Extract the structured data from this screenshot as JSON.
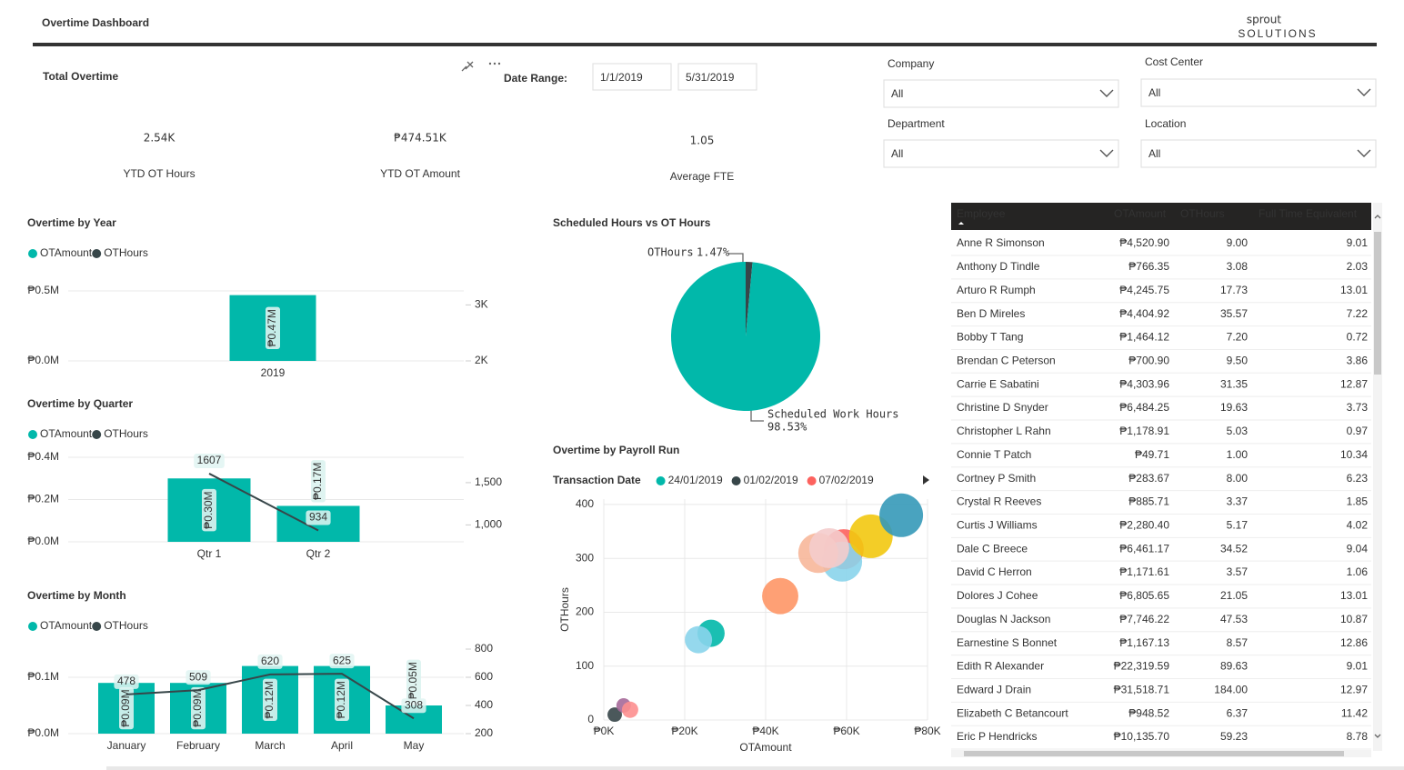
{
  "header": {
    "title": "Overtime Dashboard",
    "logo": {
      "name": "sprout",
      "tagline": "SOLUTIONS"
    }
  },
  "overtime_card": {
    "title": "Total Overtime",
    "date_range": {
      "label": "Date Range:",
      "start": "1/1/2019",
      "end": "5/31/2019"
    },
    "kpis": [
      {
        "value": "2.54K",
        "label": "YTD OT Hours"
      },
      {
        "value": "₱474.51K",
        "label": "YTD OT Amount"
      },
      {
        "value": "1.05",
        "label": "Average FTE"
      }
    ]
  },
  "filters": [
    {
      "label": "Company",
      "value": "All"
    },
    {
      "label": "Cost Center",
      "value": "All"
    },
    {
      "label": "Department",
      "value": "All"
    },
    {
      "label": "Location",
      "value": "All"
    }
  ],
  "chart_data": [
    {
      "type": "combo",
      "title": "Overtime by Year",
      "categories": [
        "2019"
      ],
      "ylim": [
        0,
        500000
      ],
      "yticks": [
        {
          "value": 0,
          "label": "₱0.0M"
        },
        {
          "value": 500000,
          "label": "₱0.5M"
        }
      ],
      "y2lim": [
        2000,
        3250
      ],
      "y2ticks": [
        {
          "value": 2000,
          "label": "2K"
        },
        {
          "value": 3000,
          "label": "3K"
        }
      ],
      "grid": true,
      "series": [
        {
          "name": "OTAmount",
          "type": "bar",
          "color": "#01b8aa",
          "values": [
            470000
          ],
          "value_labels": [
            "₱0.47M"
          ]
        },
        {
          "name": "OTHours",
          "type": "line",
          "axis": "y2",
          "color": "#374649",
          "values": [
            2540
          ],
          "data_labels": false
        }
      ]
    },
    {
      "type": "combo",
      "title": "Overtime by Quarter",
      "categories": [
        "Qtr 1",
        "Qtr 2"
      ],
      "ylim": [
        0,
        400000
      ],
      "yticks": [
        {
          "value": 0,
          "label": "₱0.0M"
        },
        {
          "value": 200000,
          "label": "₱0.2M"
        },
        {
          "value": 400000,
          "label": "₱0.4M"
        }
      ],
      "y2lim": [
        800,
        1800
      ],
      "y2ticks": [
        {
          "value": 1000,
          "label": "1,000"
        },
        {
          "value": 1500,
          "label": "1,500"
        }
      ],
      "grid": true,
      "series": [
        {
          "name": "OTAmount",
          "type": "bar",
          "color": "#01b8aa",
          "values": [
            300000,
            170000
          ],
          "value_labels": [
            "₱0.30M",
            "₱0.17M"
          ]
        },
        {
          "name": "OTHours",
          "type": "line",
          "axis": "y2",
          "color": "#374649",
          "values": [
            1607,
            934
          ],
          "data_labels": true
        }
      ]
    },
    {
      "type": "combo",
      "title": "Overtime by Month",
      "categories": [
        "January",
        "February",
        "March",
        "April",
        "May"
      ],
      "ylim": [
        0,
        150000
      ],
      "yticks": [
        {
          "value": 0,
          "label": "₱0.0M"
        },
        {
          "value": 100000,
          "label": "₱0.1M"
        }
      ],
      "y2lim": [
        200,
        800
      ],
      "y2ticks": [
        200,
        400,
        600,
        800
      ],
      "grid": true,
      "series": [
        {
          "name": "OTAmount",
          "type": "bar",
          "color": "#01b8aa",
          "values": [
            90000,
            90000,
            120000,
            120000,
            50000
          ],
          "value_labels": [
            "₱0.09M",
            "₱0.09M",
            "₱0.12M",
            "₱0.12M",
            "₱0.05M"
          ]
        },
        {
          "name": "OTHours",
          "type": "line",
          "axis": "y2",
          "color": "#374649",
          "values": [
            478,
            509,
            620,
            625,
            308
          ],
          "data_labels": true
        }
      ]
    },
    {
      "type": "pie",
      "title": "Scheduled Hours vs OT Hours",
      "categories": [
        "OTHours",
        "Scheduled Work Hours"
      ],
      "values": [
        1.47,
        98.53
      ],
      "value_labels": [
        "1.47%",
        "98.53%"
      ],
      "colors": [
        "#374649",
        "#01b8aa"
      ]
    },
    {
      "type": "scatter",
      "title": "Overtime by Payroll Run",
      "legend_title": "Transaction Date",
      "x_label": "OTAmount",
      "y_label": "OTHours",
      "xlim": [
        0,
        80000
      ],
      "xticks": [
        {
          "value": 0,
          "label": "₱0K"
        },
        {
          "value": 20000,
          "label": "₱20K"
        },
        {
          "value": 40000,
          "label": "₱40K"
        },
        {
          "value": 60000,
          "label": "₱60K"
        },
        {
          "value": 80000,
          "label": "₱80K"
        }
      ],
      "ylim": [
        0,
        410
      ],
      "yticks": [
        0,
        100,
        200,
        300,
        400
      ],
      "grid": true,
      "series": [
        {
          "name": "24/01/2019",
          "color": "#01b8aa",
          "x": [
            26500
          ],
          "values": [
            161
          ],
          "sizes": [
            39
          ]
        },
        {
          "name": "01/02/2019",
          "color": "#374649",
          "x": [
            2700
          ],
          "values": [
            10
          ],
          "sizes": [
            11
          ]
        },
        {
          "name": "07/02/2019",
          "color": "#fd625e",
          "x": [
            59300
          ],
          "values": [
            317
          ],
          "sizes": [
            84
          ]
        },
        {
          "color": "#a66999",
          "x": [
            4900
          ],
          "values": [
            27
          ],
          "sizes": [
            11
          ]
        },
        {
          "color": "#fd8f8f",
          "x": [
            6500
          ],
          "values": [
            19
          ],
          "sizes": [
            14
          ]
        },
        {
          "color": "#8ad4eb",
          "x": [
            23400,
            58900
          ],
          "values": [
            149,
            294
          ],
          "sizes": [
            39,
            84
          ]
        },
        {
          "color": "#fe9666",
          "x": [
            43600
          ],
          "values": [
            230
          ],
          "sizes": [
            69
          ]
        },
        {
          "color": "#f7b79a",
          "x": [
            53000
          ],
          "values": [
            310
          ],
          "sizes": [
            84
          ]
        },
        {
          "color": "#f4cccc",
          "x": [
            55700
          ],
          "values": [
            319
          ],
          "sizes": [
            84
          ]
        },
        {
          "color": "#f2c80f",
          "x": [
            66000
          ],
          "values": [
            341
          ],
          "sizes": [
            100
          ]
        },
        {
          "color": "#3599b8",
          "x": [
            73500
          ],
          "values": [
            380
          ],
          "sizes": [
            100
          ]
        }
      ]
    }
  ],
  "table": {
    "columns": [
      "Employee",
      "OTAmount",
      "OTHours",
      "Full Time Equivalent"
    ],
    "rows": [
      [
        "Anne R Simonson",
        "₱4,520.90",
        "9.00",
        "9.01"
      ],
      [
        "Anthony D Tindle",
        "₱766.35",
        "3.08",
        "2.03"
      ],
      [
        "Arturo R Rumph",
        "₱4,245.75",
        "17.73",
        "13.01"
      ],
      [
        "Ben D Mireles",
        "₱4,404.92",
        "35.57",
        "7.22"
      ],
      [
        "Bobby T Tang",
        "₱1,464.12",
        "7.20",
        "0.72"
      ],
      [
        "Brendan C Peterson",
        "₱700.90",
        "9.50",
        "3.86"
      ],
      [
        "Carrie E Sabatini",
        "₱4,303.96",
        "31.35",
        "12.87"
      ],
      [
        "Christine D Snyder",
        "₱6,484.25",
        "19.63",
        "3.73"
      ],
      [
        "Christopher L Rahn",
        "₱1,178.91",
        "5.03",
        "0.97"
      ],
      [
        "Connie T Patch",
        "₱49.71",
        "1.00",
        "10.34"
      ],
      [
        "Cortney P Smith",
        "₱283.67",
        "8.00",
        "6.23"
      ],
      [
        "Crystal R Reeves",
        "₱885.71",
        "3.37",
        "1.85"
      ],
      [
        "Curtis J Williams",
        "₱2,280.40",
        "5.17",
        "4.02"
      ],
      [
        "Dale C Breece",
        "₱6,461.17",
        "34.52",
        "9.04"
      ],
      [
        "David C Herron",
        "₱1,171.61",
        "3.57",
        "1.06"
      ],
      [
        "Dolores J Cohee",
        "₱6,805.65",
        "21.05",
        "13.01"
      ],
      [
        "Douglas N Jackson",
        "₱7,746.22",
        "47.53",
        "10.87"
      ],
      [
        "Earnestine S Bonnet",
        "₱1,167.13",
        "8.57",
        "12.86"
      ],
      [
        "Edith R Alexander",
        "₱22,319.59",
        "89.63",
        "9.01"
      ],
      [
        "Edward J Drain",
        "₱31,518.71",
        "184.00",
        "12.97"
      ],
      [
        "Elizabeth C Betancourt",
        "₱948.52",
        "6.37",
        "11.42"
      ],
      [
        "Eric P Hendricks",
        "₱10,135.70",
        "59.23",
        "8.78"
      ]
    ]
  }
}
